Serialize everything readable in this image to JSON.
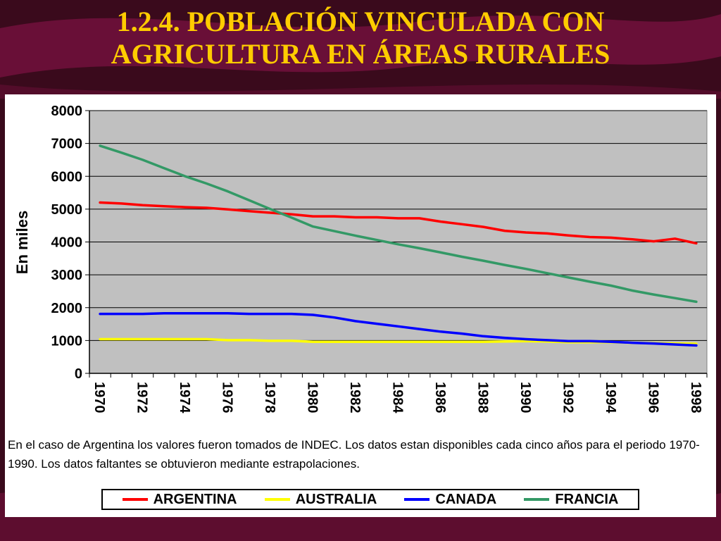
{
  "slide": {
    "title_line1": "1.2.4. POBLACIÓN VINCULADA CON",
    "title_line2": "AGRICULTURA EN ÁREAS RURALES"
  },
  "note": "En el caso de Argentina  los valores fueron tomados de INDEC.  Los datos estan disponibles cada cinco años para el periodo 1970-1990. Los datos faltantes se obtuvieron mediante estrapolaciones.",
  "chart_data": {
    "type": "line",
    "title": "",
    "xlabel": "",
    "ylabel": "En miles",
    "ylim": [
      0,
      8000
    ],
    "yticks": [
      0,
      1000,
      2000,
      3000,
      4000,
      5000,
      6000,
      7000,
      8000
    ],
    "x": [
      1970,
      1971,
      1972,
      1973,
      1974,
      1975,
      1976,
      1977,
      1978,
      1979,
      1980,
      1981,
      1982,
      1983,
      1984,
      1985,
      1986,
      1987,
      1988,
      1989,
      1990,
      1991,
      1992,
      1993,
      1994,
      1995,
      1996,
      1997,
      1998
    ],
    "xtick_labels": [
      "1970",
      "1972",
      "1974",
      "1976",
      "1978",
      "1980",
      "1982",
      "1984",
      "1986",
      "1988",
      "1990",
      "1992",
      "1994",
      "1996",
      "1998"
    ],
    "grid": true,
    "plot_background": "#c0c0c0",
    "legend_position": "bottom",
    "series": [
      {
        "name": "ARGENTINA",
        "color": "#ff0000",
        "values": [
          5200,
          5170,
          5120,
          5090,
          5060,
          5040,
          4990,
          4940,
          4890,
          4840,
          4780,
          4780,
          4750,
          4750,
          4720,
          4720,
          4620,
          4540,
          4460,
          4340,
          4290,
          4260,
          4200,
          4150,
          4130,
          4080,
          4020,
          4100,
          3960
        ]
      },
      {
        "name": "AUSTRALIA",
        "color": "#ffff00",
        "values": [
          1040,
          1040,
          1040,
          1040,
          1040,
          1040,
          1010,
          1010,
          990,
          990,
          960,
          960,
          960,
          960,
          960,
          960,
          960,
          960,
          960,
          970,
          980,
          970,
          950,
          950,
          950,
          930,
          920,
          910,
          900
        ]
      },
      {
        "name": "CANADA",
        "color": "#0000ff",
        "values": [
          1810,
          1810,
          1810,
          1830,
          1830,
          1830,
          1830,
          1810,
          1810,
          1810,
          1780,
          1700,
          1590,
          1510,
          1430,
          1350,
          1270,
          1210,
          1130,
          1080,
          1040,
          1010,
          980,
          980,
          960,
          930,
          910,
          880,
          850
        ]
      },
      {
        "name": "FRANCIA",
        "color": "#339966",
        "values": [
          6930,
          6720,
          6500,
          6250,
          6000,
          5780,
          5540,
          5270,
          5000,
          4740,
          4470,
          4330,
          4190,
          4060,
          3930,
          3810,
          3680,
          3550,
          3430,
          3300,
          3180,
          3050,
          2920,
          2790,
          2670,
          2520,
          2400,
          2290,
          2180
        ]
      }
    ]
  }
}
